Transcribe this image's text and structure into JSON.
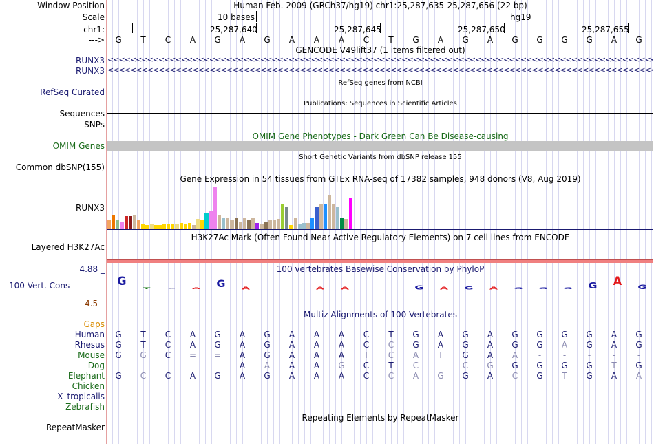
{
  "labels": {
    "window_position": "Window Position",
    "scale": "Scale",
    "chr": "chr1:",
    "arrow": "--->",
    "runx3_a": "RUNX3",
    "runx3_b": "RUNX3",
    "refseq": "RefSeq Curated",
    "sequences": "Sequences",
    "snps": "SNPs",
    "omim": "OMIM Genes",
    "dbsnp": "Common dbSNP(155)",
    "gtex_runx3": "RUNX3",
    "h3k27ac": "Layered H3K27Ac",
    "cons_max": "4.88 _",
    "cons": "100 Vert. Cons",
    "cons_min": "-4.5 _",
    "gaps": "Gaps",
    "repeatmasker": "RepeatMasker"
  },
  "header": {
    "position_text": "Human Feb. 2009 (GRCh37/hg19)   chr1:25,287,635-25,287,656 (22 bp)",
    "scale_text": "10 bases",
    "assembly": "hg19",
    "coords": [
      "25,287,640",
      "25,287,645",
      "25,287,650",
      "25,287,655"
    ]
  },
  "bases": [
    "G",
    "T",
    "C",
    "A",
    "G",
    "A",
    "G",
    "A",
    "A",
    "A",
    "C",
    "T",
    "G",
    "A",
    "G",
    "A",
    "G",
    "G",
    "G",
    "G",
    "A",
    "G"
  ],
  "tracks": {
    "gencode_title": "GENCODE V49lift37 (1 items filtered out)",
    "refseq_title": "RefSeq genes from NCBI",
    "publications_title": "Publications: Sequences in Scientific Articles",
    "omim_title": "OMIM Gene Phenotypes - Dark Green Can Be Disease-causing",
    "dbsnp_title": "Short Genetic Variants from dbSNP release 155",
    "gtex_title": "Gene Expression in 54 tissues from GTEx RNA-seq of 17382 samples, 948 donors (V8, Aug 2019)",
    "h3k27ac_title": "H3K27Ac Mark (Often Found Near Active Regulatory Elements) on 7 cell lines from ENCODE",
    "phylop_title": "100 vertebrates Basewise Conservation by PhyloP",
    "multiz_title": "Multiz Alignments of 100 Vertebrates",
    "repeat_title": "Repeating Elements by RepeatMasker",
    "gene_arrows": "<<<<<<<<<<<<<<<<<<<<<<<<<<<<<<<<<<<<<<<<<<<<<<<<<<<<<<<<<<<<<<<<<<<<<<<<<<<<<<<<<<<<<<<<<<<<<<<<<<<<<<<<<<<<<<<<<<<<<<<<<<<<<<<"
  },
  "colors": {
    "navy": "#1a1a70",
    "green": "#1a6b1a",
    "orange": "#d98b00",
    "omim_bar": "#c4c4c4",
    "h3k27ac": "#f08080",
    "gtex_baseline": "#1a1a70"
  },
  "gtex_values": [
    0.18,
    0.3,
    0.2,
    0.14,
    0.28,
    0.28,
    0.3,
    0.2,
    0.1,
    0.08,
    0.1,
    0.08,
    0.08,
    0.1,
    0.09,
    0.1,
    0.1,
    0.12,
    0.1,
    0.12,
    0.08,
    0.22,
    0.18,
    0.34,
    0.4,
    0.96,
    0.3,
    0.25,
    0.25,
    0.18,
    0.25,
    0.15,
    0.25,
    0.18,
    0.25,
    0.12,
    0.1,
    0.15,
    0.2,
    0.18,
    0.22,
    0.55,
    0.48,
    0.08,
    0.25,
    0.1,
    0.12,
    0.12,
    0.25,
    0.5,
    0.55,
    0.55,
    0.75,
    0.55,
    0.5,
    0.25,
    0.22,
    0.68
  ],
  "gtex_colors": [
    "#f4a460",
    "#ee7600",
    "#8fbc8f",
    "#ee82ee",
    "#cd2626",
    "#8b1a1a",
    "#cdb79e",
    "#f4a460",
    "#ffd700",
    "#ffd700",
    "#eedd82",
    "#ffd700",
    "#ffd700",
    "#ffd700",
    "#ffd700",
    "#ffd700",
    "#eedd82",
    "#ffd700",
    "#ffd700",
    "#ffd700",
    "#cdb79e",
    "#eedd82",
    "#ffd700",
    "#00cdcd",
    "#ee82ee",
    "#ee82ee",
    "#cdb79e",
    "#9ac0cd",
    "#cdb79e",
    "#cdb79e",
    "#8b7355",
    "#cdb79e",
    "#cdb79e",
    "#8b7355",
    "#cdb79e",
    "#a020f0",
    "#cdb79e",
    "#8b7355",
    "#cdb79e",
    "#cdb79e",
    "#cdb79e",
    "#9acd32",
    "#7a8b8b",
    "#ffd700",
    "#cdb79e",
    "#9ac0cd",
    "#9ac0cd",
    "#cdb79e",
    "#1e90ff",
    "#3a5fcd",
    "#cdb79e",
    "#1e90ff",
    "#cdb79e",
    "#cdb79e",
    "#9ac0cd",
    "#008b45",
    "#cdb79e",
    "#ff00ff"
  ],
  "phylop_letters": [
    "G",
    "T",
    "C",
    "A",
    "G",
    "A",
    "G",
    "A",
    "A",
    "A",
    "C",
    "T",
    "G",
    "A",
    "G",
    "A",
    "G",
    "G",
    "G",
    "G",
    "A",
    "G"
  ],
  "phylop_heights": [
    0.55,
    0.1,
    0.05,
    0.1,
    0.45,
    0.15,
    0.0,
    0.0,
    0.15,
    0.15,
    0.0,
    0.0,
    0.25,
    0.15,
    0.2,
    0.15,
    0.1,
    0.1,
    0.1,
    0.4,
    0.55,
    0.3
  ],
  "multiz": {
    "species": [
      {
        "name": "Human",
        "color": "#1a1a70",
        "row": [
          "G",
          "T",
          "C",
          "A",
          "G",
          "A",
          "G",
          "A",
          "A",
          "A",
          "C",
          "T",
          "G",
          "A",
          "G",
          "A",
          "G",
          "G",
          "G",
          "G",
          "A",
          "G"
        ]
      },
      {
        "name": "Rhesus",
        "color": "#1a1a70",
        "row": [
          "G",
          "T",
          "C",
          "A",
          "G",
          "A",
          "G",
          "A",
          "A",
          "A",
          "C",
          "C",
          "G",
          "A",
          "G",
          "A",
          "G",
          "G",
          "A",
          "G",
          "A",
          "G"
        ]
      },
      {
        "name": "Mouse",
        "color": "#1a6b1a",
        "row": [
          "G",
          "G",
          "C",
          "=",
          "=",
          "A",
          "G",
          "A",
          "A",
          "A",
          "T",
          "C",
          "A",
          "T",
          "G",
          "A",
          "A",
          "-",
          "-",
          "-",
          "-",
          "-"
        ]
      },
      {
        "name": "Dog",
        "color": "#1a6b1a",
        "row": [
          "-",
          "-",
          "-",
          "-",
          "-",
          "A",
          "A",
          "A",
          "A",
          "G",
          "C",
          "T",
          "C",
          "-",
          "C",
          "G",
          "G",
          "G",
          "G",
          "G",
          "T",
          "G"
        ]
      },
      {
        "name": "Elephant",
        "color": "#1a6b1a",
        "row": [
          "G",
          "C",
          "C",
          "A",
          "G",
          "A",
          "G",
          "A",
          "A",
          "A",
          "C",
          "C",
          "A",
          "G",
          "G",
          "A",
          "C",
          "G",
          "T",
          "G",
          "A",
          "A"
        ]
      },
      {
        "name": "Chicken",
        "color": "#1a6b1a",
        "row": []
      },
      {
        "name": "X_tropicalis",
        "color": "#1a1a70",
        "row": []
      },
      {
        "name": "Zebrafish",
        "color": "#1a6b1a",
        "row": []
      }
    ]
  }
}
